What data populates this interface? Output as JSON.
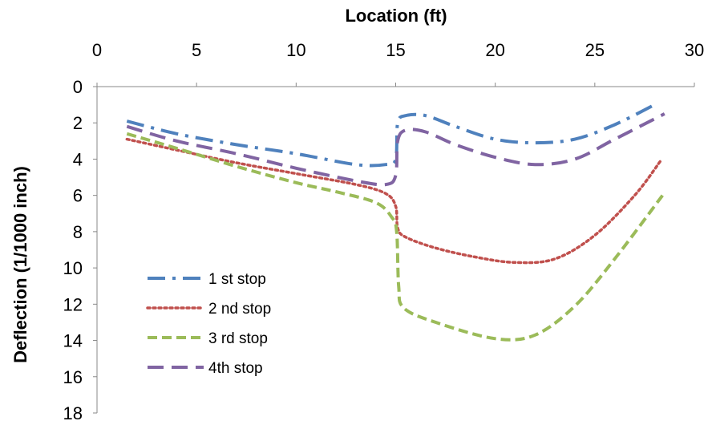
{
  "chart_data": {
    "type": "line",
    "title": "",
    "xlabel": "Location (ft)",
    "ylabel": "Deflection (1/1000 inch)",
    "x_axis_position": "top",
    "y_axis_inverted": true,
    "xlim": [
      0,
      30
    ],
    "ylim": [
      0,
      18
    ],
    "x_ticks": [
      "0",
      "5",
      "10",
      "15",
      "20",
      "25",
      "30"
    ],
    "y_ticks": [
      "0",
      "2",
      "4",
      "6",
      "8",
      "10",
      "12",
      "14",
      "16",
      "18"
    ],
    "grid": false,
    "legend_placement": "lower-left",
    "series": [
      {
        "name": "1 st stop",
        "color": "#4F81BD",
        "dash": "long-dash-dot",
        "points": [
          [
            1.5,
            1.9
          ],
          [
            4,
            2.6
          ],
          [
            7,
            3.2
          ],
          [
            10,
            3.7
          ],
          [
            13,
            4.3
          ],
          [
            14.5,
            4.3
          ],
          [
            15,
            4.0
          ],
          [
            15.1,
            2.0
          ],
          [
            15.5,
            1.6
          ],
          [
            16.5,
            1.6
          ],
          [
            18,
            2.2
          ],
          [
            20,
            2.9
          ],
          [
            22,
            3.1
          ],
          [
            24,
            2.9
          ],
          [
            26,
            2.1
          ],
          [
            28,
            1.0
          ]
        ]
      },
      {
        "name": "2 nd stop",
        "color": "#C0504D",
        "dash": "dotted",
        "points": [
          [
            1.5,
            2.9
          ],
          [
            4,
            3.5
          ],
          [
            7,
            4.2
          ],
          [
            10,
            4.8
          ],
          [
            13,
            5.4
          ],
          [
            14.5,
            5.9
          ],
          [
            15,
            6.6
          ],
          [
            15.1,
            7.8
          ],
          [
            15.5,
            8.3
          ],
          [
            17,
            8.9
          ],
          [
            19,
            9.4
          ],
          [
            21,
            9.7
          ],
          [
            23,
            9.5
          ],
          [
            25,
            8.2
          ],
          [
            27,
            6.0
          ],
          [
            28.3,
            4.1
          ]
        ]
      },
      {
        "name": "3 rd stop",
        "color": "#9BBB59",
        "dash": "dashed",
        "points": [
          [
            1.5,
            2.6
          ],
          [
            4,
            3.4
          ],
          [
            7,
            4.4
          ],
          [
            10,
            5.3
          ],
          [
            12,
            5.8
          ],
          [
            14,
            6.4
          ],
          [
            14.8,
            7.2
          ],
          [
            15.05,
            8.0
          ],
          [
            15.15,
            11.0
          ],
          [
            15.4,
            12.2
          ],
          [
            17,
            13.0
          ],
          [
            20,
            13.9
          ],
          [
            22,
            13.7
          ],
          [
            24,
            12.1
          ],
          [
            26,
            9.5
          ],
          [
            28.4,
            6.0
          ]
        ]
      },
      {
        "name": "4th stop",
        "color": "#8064A2",
        "dash": "long-dash",
        "points": [
          [
            1.5,
            2.2
          ],
          [
            4,
            3.0
          ],
          [
            7,
            3.7
          ],
          [
            10,
            4.5
          ],
          [
            13,
            5.2
          ],
          [
            14.5,
            5.4
          ],
          [
            15,
            4.9
          ],
          [
            15.1,
            3.0
          ],
          [
            15.5,
            2.4
          ],
          [
            16.5,
            2.5
          ],
          [
            18,
            3.2
          ],
          [
            20,
            3.9
          ],
          [
            22,
            4.3
          ],
          [
            24,
            4.0
          ],
          [
            26,
            2.9
          ],
          [
            28.5,
            1.5
          ]
        ]
      }
    ]
  }
}
